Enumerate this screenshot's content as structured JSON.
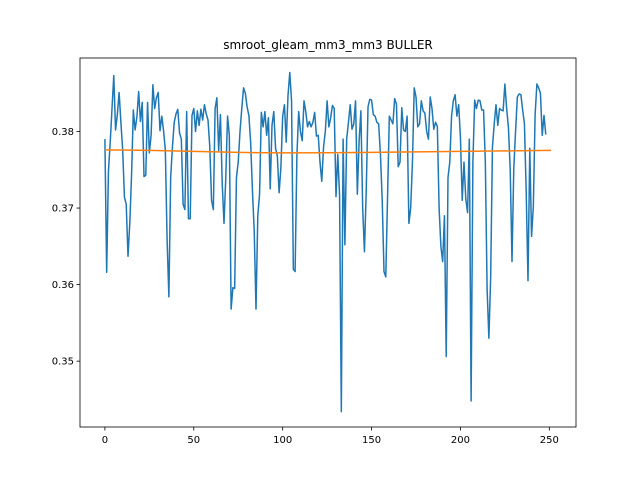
{
  "chart_data": {
    "type": "line",
    "title": "smroot_gleam_mm3_mm3 BULLER",
    "xlabel": "",
    "ylabel": "",
    "xlim": [
      -14,
      265
    ],
    "ylim": [
      0.3414,
      0.3896
    ],
    "xticks": [
      0,
      50,
      100,
      150,
      200,
      250
    ],
    "yticks": [
      0.35,
      0.36,
      0.37,
      0.38
    ],
    "xtick_labels": [
      "0",
      "50",
      "100",
      "150",
      "200",
      "250"
    ],
    "ytick_labels": [
      "0.35",
      "0.36",
      "0.37",
      "0.38"
    ],
    "grid": false,
    "legend": "none",
    "series": [
      {
        "color": "#1f77b4",
        "x_start": 0,
        "x_step": 1,
        "values": [
          0.379,
          0.3616,
          0.3748,
          0.3786,
          0.383,
          0.3873,
          0.3802,
          0.3822,
          0.3851,
          0.3812,
          0.3776,
          0.3714,
          0.3705,
          0.3637,
          0.368,
          0.3743,
          0.3828,
          0.3802,
          0.3819,
          0.3852,
          0.3813,
          0.3838,
          0.3741,
          0.3743,
          0.3838,
          0.3772,
          0.3795,
          0.3861,
          0.383,
          0.3844,
          0.3851,
          0.3801,
          0.382,
          0.3801,
          0.3776,
          0.3658,
          0.3584,
          0.374,
          0.378,
          0.3812,
          0.3823,
          0.3829,
          0.3798,
          0.379,
          0.3705,
          0.3698,
          0.3826,
          0.3686,
          0.3686,
          0.3821,
          0.383,
          0.38,
          0.3827,
          0.3808,
          0.3829,
          0.3815,
          0.3835,
          0.3823,
          0.3815,
          0.378,
          0.371,
          0.3698,
          0.383,
          0.3844,
          0.3775,
          0.3822,
          0.3732,
          0.368,
          0.374,
          0.382,
          0.3795,
          0.3568,
          0.3596,
          0.3595,
          0.374,
          0.376,
          0.38,
          0.383,
          0.3857,
          0.385,
          0.3832,
          0.3821,
          0.3785,
          0.3723,
          0.367,
          0.3568,
          0.369,
          0.3718,
          0.3825,
          0.3806,
          0.3826,
          0.3795,
          0.3818,
          0.3725,
          0.3808,
          0.3826,
          0.3778,
          0.3768,
          0.372,
          0.3753,
          0.382,
          0.3835,
          0.3786,
          0.3847,
          0.3877,
          0.384,
          0.362,
          0.3617,
          0.3768,
          0.3826,
          0.38,
          0.3788,
          0.384,
          0.3826,
          0.3806,
          0.3813,
          0.3806,
          0.3812,
          0.3825,
          0.3794,
          0.3795,
          0.376,
          0.3735,
          0.378,
          0.38,
          0.384,
          0.3806,
          0.3818,
          0.3834,
          0.383,
          0.3715,
          0.377,
          0.3717,
          0.3434,
          0.379,
          0.3652,
          0.379,
          0.3812,
          0.3835,
          0.3803,
          0.381,
          0.384,
          0.3718,
          0.3787,
          0.3827,
          0.37,
          0.3643,
          0.3722,
          0.3832,
          0.3842,
          0.3841,
          0.3822,
          0.382,
          0.3812,
          0.381,
          0.377,
          0.371,
          0.3617,
          0.361,
          0.3715,
          0.382,
          0.3815,
          0.381,
          0.3843,
          0.3836,
          0.3754,
          0.376,
          0.3831,
          0.3802,
          0.38,
          0.382,
          0.368,
          0.37,
          0.376,
          0.3857,
          0.3845,
          0.3806,
          0.381,
          0.384,
          0.3827,
          0.3824,
          0.38,
          0.379,
          0.3845,
          0.383,
          0.3803,
          0.3812,
          0.3807,
          0.37,
          0.365,
          0.363,
          0.369,
          0.3506,
          0.374,
          0.376,
          0.382,
          0.384,
          0.3848,
          0.382,
          0.3835,
          0.3792,
          0.371,
          0.376,
          0.3712,
          0.3694,
          0.379,
          0.3448,
          0.376,
          0.3841,
          0.383,
          0.3841,
          0.384,
          0.3828,
          0.3828,
          0.376,
          0.3594,
          0.353,
          0.361,
          0.378,
          0.381,
          0.3835,
          0.3808,
          0.383,
          0.3828,
          0.3827,
          0.3862,
          0.383,
          0.3805,
          0.375,
          0.363,
          0.3752,
          0.38,
          0.3845,
          0.3849,
          0.3848,
          0.3828,
          0.381,
          0.372,
          0.3605,
          0.3778,
          0.3663,
          0.3702,
          0.3822,
          0.3862,
          0.3857,
          0.385,
          0.3795,
          0.3821,
          0.3796
        ]
      },
      {
        "color": "#ff7f0e",
        "x": [
          0,
          25,
          50,
          75,
          100,
          125,
          150,
          175,
          200,
          225,
          251
        ],
        "y": [
          0.3776,
          0.37753,
          0.3774,
          0.37727,
          0.3772,
          0.37723,
          0.37727,
          0.37733,
          0.3774,
          0.37747,
          0.37753
        ]
      }
    ]
  }
}
